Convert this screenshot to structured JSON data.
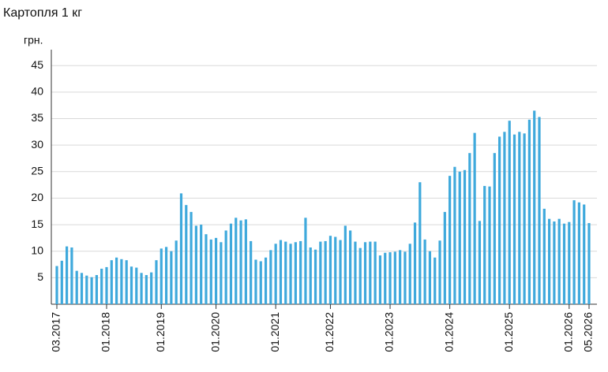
{
  "chart_data": {
    "type": "bar",
    "title": "Картопля 1 кг",
    "y_label": "грн.",
    "color": "#3fa9dc",
    "grid": true,
    "ylim": [
      0,
      48
    ],
    "yticks": [
      5,
      10,
      15,
      20,
      25,
      30,
      35,
      40,
      45
    ],
    "categories": [
      "03.2017",
      null,
      null,
      null,
      null,
      null,
      null,
      null,
      null,
      null,
      "01.2018",
      null,
      null,
      null,
      null,
      null,
      null,
      null,
      null,
      null,
      null,
      "01.2019",
      null,
      null,
      null,
      null,
      null,
      null,
      null,
      null,
      null,
      null,
      "01.2020",
      null,
      null,
      null,
      null,
      null,
      null,
      null,
      null,
      null,
      null,
      null,
      "01.2021",
      null,
      null,
      null,
      null,
      null,
      null,
      null,
      null,
      null,
      null,
      "01.2022",
      null,
      null,
      null,
      null,
      null,
      null,
      null,
      null,
      null,
      null,
      null,
      "01.2023",
      null,
      null,
      null,
      null,
      null,
      null,
      null,
      null,
      null,
      null,
      null,
      "01.2024",
      null,
      null,
      null,
      null,
      null,
      null,
      null,
      null,
      null,
      null,
      null,
      "01.2025",
      null,
      null,
      null,
      null,
      null,
      null,
      null,
      null,
      null,
      null,
      null,
      "01.2026",
      null,
      null,
      null,
      "05.2026"
    ],
    "values": [
      7.2,
      8.2,
      10.9,
      10.7,
      6.3,
      5.9,
      5.4,
      5.1,
      5.5,
      6.7,
      7.0,
      8.3,
      8.8,
      8.5,
      8.3,
      7.1,
      6.9,
      5.9,
      5.5,
      6.0,
      8.3,
      10.5,
      10.8,
      10.0,
      12.0,
      20.9,
      18.7,
      17.4,
      14.8,
      15.0,
      13.2,
      12.2,
      12.5,
      11.7,
      13.9,
      15.2,
      16.3,
      15.8,
      16.0,
      11.9,
      8.4,
      8.1,
      8.8,
      10.2,
      11.4,
      12.1,
      11.8,
      11.4,
      11.7,
      11.9,
      16.3,
      10.7,
      10.3,
      11.8,
      11.9,
      12.9,
      12.7,
      12.1,
      14.8,
      13.9,
      11.8,
      10.6,
      11.7,
      11.8,
      11.8,
      9.2,
      9.7,
      9.8,
      9.9,
      10.2,
      9.9,
      11.4,
      15.4,
      23.0,
      12.2,
      10.0,
      8.8,
      12.0,
      17.4,
      24.2,
      25.9,
      25.0,
      25.3,
      28.5,
      32.3,
      15.7,
      22.3,
      22.2,
      28.5,
      31.6,
      32.5,
      34.6,
      32.0,
      32.5,
      32.2,
      34.8,
      36.5,
      35.3,
      18.0,
      16.1,
      15.6,
      16.1,
      15.2,
      15.5,
      19.6,
      19.2,
      18.8,
      15.3
    ]
  }
}
